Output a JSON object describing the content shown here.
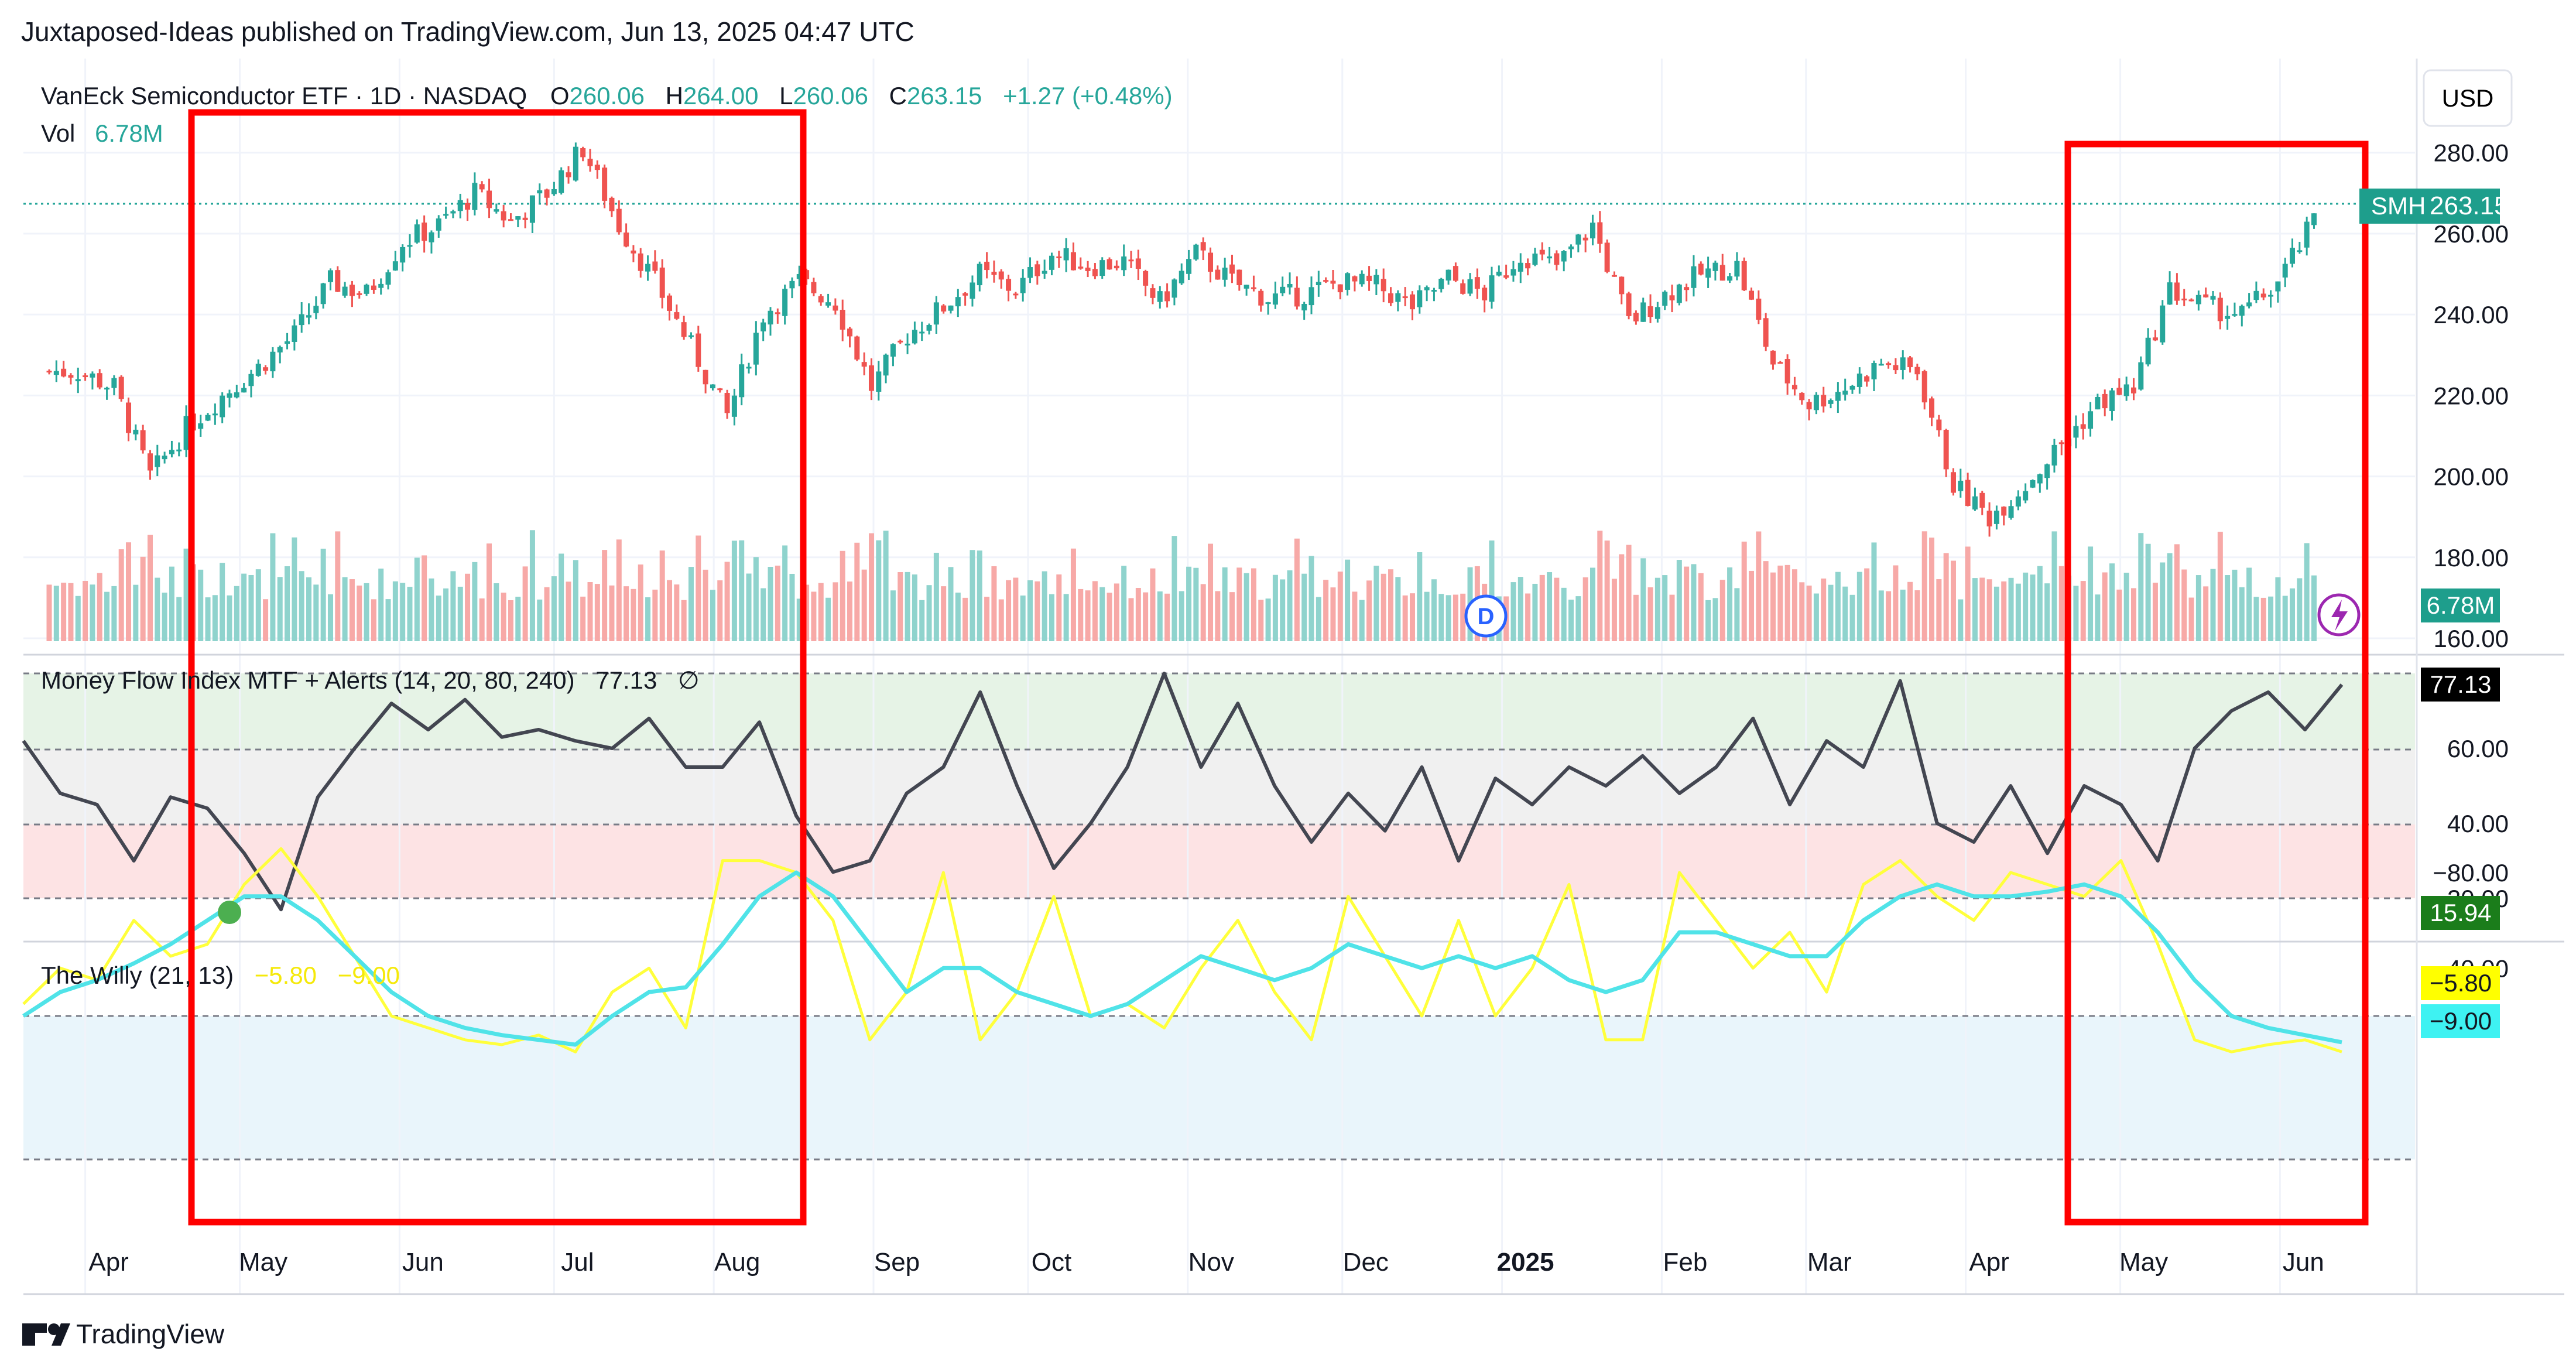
{
  "header": {
    "publisher": "Juxtaposed-Ideas published on TradingView.com, Jun 13, 2025 04:47 UTC",
    "currency": "USD",
    "brand": "TradingView"
  },
  "legend": {
    "title": "VanEck Semiconductor ETF · 1D · NASDAQ",
    "o_label": "O",
    "o_value": "260.06",
    "h_label": "H",
    "h_value": "264.00",
    "l_label": "L",
    "l_value": "260.06",
    "c_label": "C",
    "c_value": "263.15",
    "change": "+1.27 (+0.48%)",
    "vol_label": "Vol",
    "vol_value": "6.78M",
    "mfi_label": "Money Flow Index MTF + Alerts (14, 20, 80, 240)",
    "mfi_value": "77.13",
    "mfi_extra": "∅",
    "willy_label": "The Willy (21, 13)",
    "willy_fast": "−5.80",
    "willy_slow": "−9.00"
  },
  "badges": {
    "price_symbol": "SMH",
    "price": "263.15",
    "volume": "6.78M",
    "mfi": "77.13",
    "mfi_low": "15.94",
    "willy_fast": "−5.80",
    "willy_slow": "−9.00"
  },
  "markers": {
    "dividend": "D",
    "earnings_icon": "lightning-icon"
  },
  "colors": {
    "up": "#26a69a",
    "down": "#ef5350",
    "vol_up": "#8fd3cd",
    "vol_down": "#f7a9a7",
    "mfi_line": "#434651",
    "willy_fast": "#ffff3b",
    "willy_slow": "#50e3e8",
    "highlight_box": "#ff0000",
    "mfi_overbought": "#e6f3e6",
    "mfi_oversold": "#fde3e4",
    "willy_zone": "#e9f5fb"
  },
  "chart_data": [
    {
      "type": "candlestick",
      "title": "VanEck Semiconductor ETF · 1D · NASDAQ",
      "x_tick_labels": [
        "Apr",
        "May",
        "Jun",
        "Jul",
        "Aug",
        "Sep",
        "Oct",
        "Nov",
        "Dec",
        "2025",
        "Feb",
        "Mar",
        "Apr",
        "May",
        "Jun"
      ],
      "y_tick_labels": [
        "280.00",
        "260.00",
        "240.00",
        "220.00",
        "200.00",
        "180.00",
        "160.00"
      ],
      "ylim": [
        160,
        285
      ],
      "last_price": 263.15,
      "series_weekly_close": [
        {
          "x": "2024-03-25",
          "y": 226
        },
        {
          "x": "2024-04-01",
          "y": 226
        },
        {
          "x": "2024-04-08",
          "y": 222
        },
        {
          "x": "2024-04-15",
          "y": 200
        },
        {
          "x": "2024-04-22",
          "y": 212
        },
        {
          "x": "2024-04-29",
          "y": 220
        },
        {
          "x": "2024-05-06",
          "y": 227
        },
        {
          "x": "2024-05-13",
          "y": 235
        },
        {
          "x": "2024-05-20",
          "y": 248
        },
        {
          "x": "2024-05-27",
          "y": 245
        },
        {
          "x": "2024-06-03",
          "y": 258
        },
        {
          "x": "2024-06-10",
          "y": 262
        },
        {
          "x": "2024-06-17",
          "y": 270
        },
        {
          "x": "2024-06-24",
          "y": 263
        },
        {
          "x": "2024-07-01",
          "y": 270
        },
        {
          "x": "2024-07-08",
          "y": 281
        },
        {
          "x": "2024-07-15",
          "y": 262
        },
        {
          "x": "2024-07-22",
          "y": 248
        },
        {
          "x": "2024-07-29",
          "y": 232
        },
        {
          "x": "2024-08-05",
          "y": 215
        },
        {
          "x": "2024-08-12",
          "y": 240
        },
        {
          "x": "2024-08-19",
          "y": 248
        },
        {
          "x": "2024-08-26",
          "y": 243
        },
        {
          "x": "2024-09-02",
          "y": 222
        },
        {
          "x": "2024-09-09",
          "y": 235
        },
        {
          "x": "2024-09-16",
          "y": 242
        },
        {
          "x": "2024-09-23",
          "y": 250
        },
        {
          "x": "2024-09-30",
          "y": 246
        },
        {
          "x": "2024-10-07",
          "y": 255
        },
        {
          "x": "2024-10-14",
          "y": 252
        },
        {
          "x": "2024-10-21",
          "y": 253
        },
        {
          "x": "2024-10-28",
          "y": 243
        },
        {
          "x": "2024-11-04",
          "y": 255
        },
        {
          "x": "2024-11-11",
          "y": 248
        },
        {
          "x": "2024-11-18",
          "y": 244
        },
        {
          "x": "2024-11-25",
          "y": 245
        },
        {
          "x": "2024-12-02",
          "y": 248
        },
        {
          "x": "2024-12-09",
          "y": 247
        },
        {
          "x": "2024-12-16",
          "y": 242
        },
        {
          "x": "2024-12-23",
          "y": 249
        },
        {
          "x": "2024-12-30",
          "y": 245
        },
        {
          "x": "2025-01-06",
          "y": 255
        },
        {
          "x": "2025-01-13",
          "y": 252
        },
        {
          "x": "2025-01-20",
          "y": 262
        },
        {
          "x": "2025-01-27",
          "y": 238
        },
        {
          "x": "2025-02-03",
          "y": 245
        },
        {
          "x": "2025-02-10",
          "y": 250
        },
        {
          "x": "2025-02-17",
          "y": 252
        },
        {
          "x": "2025-02-24",
          "y": 228
        },
        {
          "x": "2025-03-03",
          "y": 218
        },
        {
          "x": "2025-03-10",
          "y": 222
        },
        {
          "x": "2025-03-17",
          "y": 228
        },
        {
          "x": "2025-03-24",
          "y": 226
        },
        {
          "x": "2025-03-31",
          "y": 198
        },
        {
          "x": "2025-04-07",
          "y": 190
        },
        {
          "x": "2025-04-14",
          "y": 198
        },
        {
          "x": "2025-04-21",
          "y": 208
        },
        {
          "x": "2025-04-28",
          "y": 218
        },
        {
          "x": "2025-05-05",
          "y": 222
        },
        {
          "x": "2025-05-12",
          "y": 246
        },
        {
          "x": "2025-05-19",
          "y": 242
        },
        {
          "x": "2025-05-26",
          "y": 240
        },
        {
          "x": "2025-06-02",
          "y": 248
        },
        {
          "x": "2025-06-09",
          "y": 263
        }
      ]
    },
    {
      "type": "line",
      "title": "Money Flow Index MTF + Alerts (14, 20, 80, 240)",
      "y_tick_labels": [
        "60.00",
        "40.00",
        "20.00"
      ],
      "ylim": [
        10,
        90
      ],
      "series": [
        {
          "name": "MFI",
          "values": [
            62,
            48,
            45,
            30,
            47,
            44,
            32,
            17,
            47,
            60,
            72,
            65,
            73,
            63,
            65,
            62,
            60,
            68,
            55,
            55,
            67,
            42,
            27,
            30,
            48,
            55,
            75,
            50,
            28,
            40,
            55,
            80,
            55,
            72,
            50,
            35,
            48,
            38,
            55,
            30,
            52,
            45,
            55,
            50,
            58,
            48,
            55,
            68,
            45,
            62,
            55,
            78,
            40,
            35,
            50,
            32,
            50,
            45,
            30,
            60,
            70,
            75,
            65,
            77
          ]
        }
      ]
    },
    {
      "type": "line",
      "title": "The Willy (21, 13)",
      "y_tick_labels": [
        "−40.00",
        "−80.00"
      ],
      "ylim": [
        -100,
        0
      ],
      "series": [
        {
          "name": "fast",
          "values": [
            -25,
            -40,
            -35,
            -60,
            -45,
            -50,
            -75,
            -90,
            -70,
            -45,
            -20,
            -15,
            -10,
            -8,
            -12,
            -5,
            -30,
            -40,
            -15,
            -85,
            -85,
            -80,
            -60,
            -10,
            -30,
            -80,
            -10,
            -30,
            -70,
            -20,
            -25,
            -15,
            -40,
            -60,
            -30,
            -10,
            -70,
            -45,
            -20,
            -60,
            -20,
            -40,
            -75,
            -10,
            -10,
            -80,
            -60,
            -40,
            -55,
            -30,
            -75,
            -85,
            -70,
            -60,
            -80,
            -75,
            -70,
            -85,
            -50,
            -10,
            -5,
            -8,
            -10,
            -5
          ]
        },
        {
          "name": "slow",
          "values": [
            -20,
            -30,
            -35,
            -42,
            -50,
            -60,
            -70,
            -70,
            -60,
            -45,
            -30,
            -20,
            -15,
            -12,
            -10,
            -8,
            -20,
            -30,
            -32,
            -50,
            -70,
            -80,
            -70,
            -50,
            -30,
            -40,
            -40,
            -30,
            -25,
            -20,
            -25,
            -35,
            -45,
            -40,
            -35,
            -40,
            -50,
            -45,
            -40,
            -45,
            -40,
            -45,
            -35,
            -30,
            -35,
            -55,
            -55,
            -50,
            -45,
            -45,
            -60,
            -70,
            -75,
            -70,
            -70,
            -72,
            -75,
            -70,
            -55,
            -35,
            -20,
            -15,
            -12,
            -9
          ]
        }
      ]
    }
  ]
}
